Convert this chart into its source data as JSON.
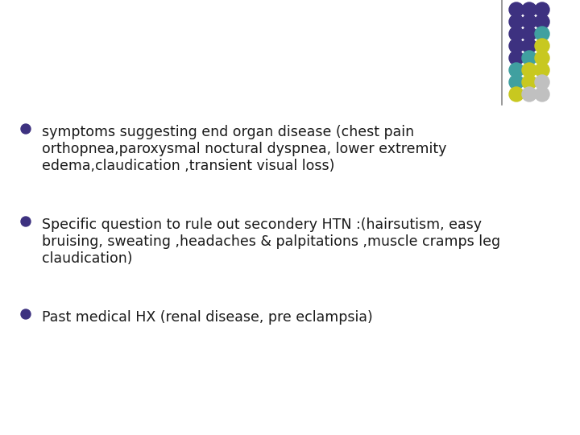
{
  "background_color": "#ffffff",
  "bullet_color": "#3d3180",
  "line_color": "#888888",
  "bullet_points": [
    {
      "lines": [
        "symptoms suggesting end organ disease (chest pain",
        "orthopnea,paroxysmal noctural dyspnea, lower extremity",
        "edema,claudication ,transient visual loss)"
      ]
    },
    {
      "lines": [
        "Specific question to rule out secondery HTN :(hairsutism, easy",
        "bruising, sweating ,headaches & palpitations ,muscle cramps leg",
        "claudication)"
      ]
    },
    {
      "lines": [
        "Past medical HX (renal disease, pre eclampsia)"
      ]
    }
  ],
  "dot_grid": [
    [
      "#3d3180",
      "#3d3180",
      "#3d3180"
    ],
    [
      "#3d3180",
      "#3d3180",
      "#3d3180"
    ],
    [
      "#3d3180",
      "#3d3180",
      "#40a0a0"
    ],
    [
      "#3d3180",
      "#3d3180",
      "#c8c820"
    ],
    [
      "#3d3180",
      "#40a0a0",
      "#c8c820"
    ],
    [
      "#40a0a0",
      "#c8c820",
      "#c8c820"
    ],
    [
      "#40a0a0",
      "#c8c820",
      "#c0c0c0"
    ],
    [
      "#c8c820",
      "#c0c0c0",
      "#c0c0c0"
    ]
  ],
  "text_fontsize": 12.5,
  "text_color": "#1a1a1a",
  "font_family": "DejaVu Sans"
}
